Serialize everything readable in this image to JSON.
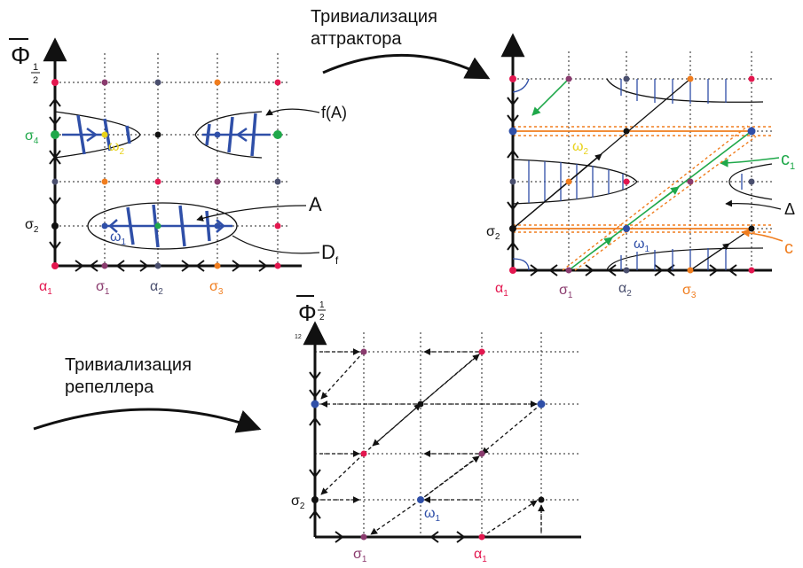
{
  "captions": {
    "attractor_line1": "Тривиализация",
    "attractor_line2": "аттрактора",
    "repeller_line1": "Тривиализация",
    "repeller_line2": "репеллера"
  },
  "axis_symbols": {
    "phi_bar": "Φ",
    "half_top": "1",
    "half_bottom": "2",
    "panel3_corner": "12"
  },
  "panel1": {
    "alpha1": "α",
    "alpha1_sub": "1",
    "sigma1": "σ",
    "sigma1_sub": "1",
    "alpha2": "α",
    "alpha2_sub": "2",
    "sigma3": "σ",
    "sigma3_sub": "3",
    "sigma2": "σ",
    "sigma2_sub": "2",
    "sigma4": "σ",
    "sigma4_sub": "4",
    "omega1": "ω",
    "omega1_sub": "1",
    "omega2": "ω",
    "omega2_sub": "2",
    "fA": "f(A)",
    "A": "A",
    "Df": "D",
    "Df_sub": "f"
  },
  "panel2": {
    "alpha1": "α",
    "alpha1_sub": "1",
    "sigma1": "σ",
    "sigma1_sub": "1",
    "alpha2": "α",
    "alpha2_sub": "2",
    "sigma3": "σ",
    "sigma3_sub": "3",
    "sigma2": "σ",
    "sigma2_sub": "2",
    "omega1": "ω",
    "omega1_sub": "1",
    "omega2": "ω",
    "omega2_sub": "2",
    "c1": "c",
    "c1_sub": "1",
    "delta": "Δ",
    "c": "c"
  },
  "panel3": {
    "sigma1": "σ",
    "sigma1_sub": "1",
    "alpha1": "α",
    "alpha1_sub": "1",
    "sigma2": "σ",
    "sigma2_sub": "2",
    "omega1": "ω",
    "omega1_sub": "1"
  },
  "colors": {
    "axis": "#111111",
    "grid": "#222222",
    "red_point": "#e3174f",
    "purple_point": "#8a3b6e",
    "slate_point": "#4a4f6e",
    "orange": "#f07d1e",
    "blue": "#2f4fa8",
    "green": "#1fa84a",
    "yellow": "#e8d21a",
    "black": "#111111"
  }
}
